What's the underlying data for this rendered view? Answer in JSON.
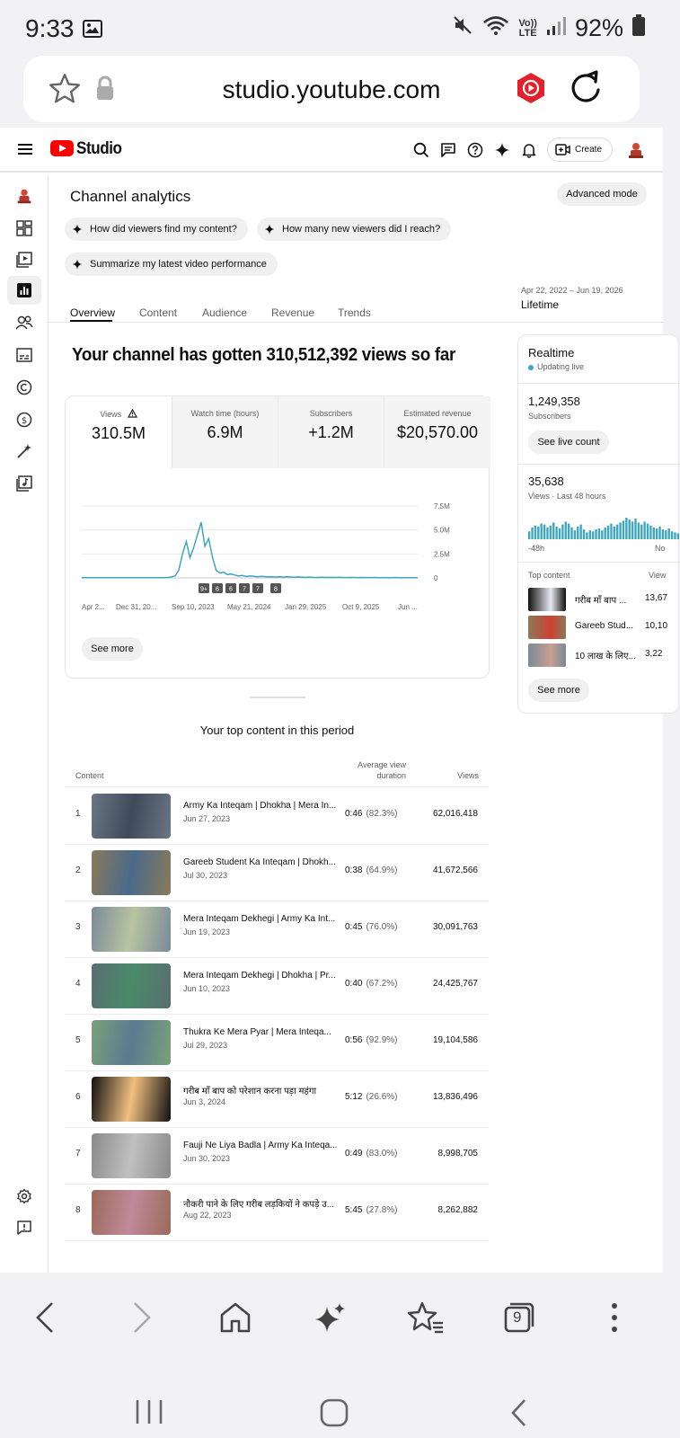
{
  "status_bar": {
    "time": "9:33",
    "battery": "92%"
  },
  "browser": {
    "url": "studio.youtube.com",
    "tab_count": "9"
  },
  "header": {
    "logo_text": "Studio",
    "create_label": "Create"
  },
  "analytics": {
    "title": "Channel analytics",
    "advanced_mode": "Advanced mode",
    "chips": [
      "How did viewers find my content?",
      "How many new viewers did I reach?",
      "Summarize my latest video performance"
    ],
    "tabs": [
      "Overview",
      "Content",
      "Audience",
      "Revenue",
      "Trends"
    ],
    "date_range": "Apr 22, 2022 – Jun 19, 2026",
    "date_label": "Lifetime",
    "headline": "Your channel has gotten 310,512,392 views so far",
    "metrics": [
      {
        "label": "Views",
        "value": "310.5M"
      },
      {
        "label": "Watch time (hours)",
        "value": "6.9M"
      },
      {
        "label": "Subscribers",
        "value": "+1.2M"
      },
      {
        "label": "Estimated revenue",
        "value": "$20,570.00"
      }
    ],
    "see_more": "See more"
  },
  "chart_data": {
    "type": "line",
    "y_ticks": [
      "7.5M",
      "5.0M",
      "2.5M",
      "0"
    ],
    "x_ticks": [
      "Apr 2...",
      "Dec 31, 20...",
      "Sep 10, 2023",
      "May 21, 2024",
      "Jan 29, 2025",
      "Oct 9, 2025",
      "Jun ..."
    ],
    "ylim": [
      0,
      7500000
    ],
    "markers": [
      "9+",
      "6",
      "6",
      "7",
      "7",
      "8"
    ],
    "series": [
      {
        "values": [
          20000,
          20000,
          20000,
          20000,
          20000,
          20000,
          20000,
          20000,
          20000,
          20000,
          20000,
          20000,
          20000,
          20000,
          20000,
          20000,
          20000,
          20000,
          20000,
          20000,
          20000,
          20000,
          30000,
          40000,
          100000,
          200000,
          800000,
          2500000,
          3800000,
          2100000,
          3200000,
          4500000,
          5800000,
          3300000,
          4100000,
          2200000,
          800000,
          500000,
          600000,
          350000,
          400000,
          300000,
          200000,
          250000,
          150000,
          200000,
          180000,
          120000,
          160000,
          140000,
          100000,
          120000,
          90000,
          110000,
          80000,
          120000,
          90000,
          70000,
          100000,
          80000,
          60000,
          80000,
          60000,
          50000,
          70000,
          60000,
          50000,
          60000,
          45000,
          55000,
          50000,
          40000,
          50000,
          45000,
          40000,
          45000,
          40000,
          35000,
          40000,
          35000,
          30000,
          35000,
          30000,
          30000,
          35000,
          30000,
          25000,
          30000,
          25000,
          25000,
          30000
        ]
      }
    ]
  },
  "top_content": {
    "title": "Your top content in this period",
    "col_content": "Content",
    "col_avg_1": "Average view",
    "col_avg_2": "duration",
    "col_views": "Views",
    "rows": [
      {
        "rank": "1",
        "title": "Army Ka Inteqam | Dhokha | Mera In...",
        "date": "Jun 27, 2023",
        "duration": "0:46",
        "pct": "(82.3%)",
        "views": "62,016,418"
      },
      {
        "rank": "2",
        "title": "Gareeb Student Ka Inteqam | Dhokh...",
        "date": "Jul 30, 2023",
        "duration": "0:38",
        "pct": "(64.9%)",
        "views": "41,672,566"
      },
      {
        "rank": "3",
        "title": "Mera Inteqam Dekhegi | Army Ka Int...",
        "date": "Jun 19, 2023",
        "duration": "0:45",
        "pct": "(76.0%)",
        "views": "30,091,763"
      },
      {
        "rank": "4",
        "title": "Mera Inteqam Dekhegi | Dhokha | Pr...",
        "date": "Jun 10, 2023",
        "duration": "0:40",
        "pct": "(67.2%)",
        "views": "24,425,767"
      },
      {
        "rank": "5",
        "title": "Thukra Ke Mera Pyar | Mera Inteqa...",
        "date": "Jul 29, 2023",
        "duration": "0:56",
        "pct": "(92.9%)",
        "views": "19,104,586"
      },
      {
        "rank": "6",
        "title": "गरीब माँ बाप को परेशान करना पड़ा महंगा",
        "date": "Jun 3, 2024",
        "duration": "5:12",
        "pct": "(26.6%)",
        "views": "13,836,496"
      },
      {
        "rank": "7",
        "title": "Fauji Ne Liya Badla | Army Ka Inteqa...",
        "date": "Jun 30, 2023",
        "duration": "0:49",
        "pct": "(83.0%)",
        "views": "8,998,705"
      },
      {
        "rank": "8",
        "title": "नौकरी पाने के लिए गरीब लड़कियों ने कपड़े उ...",
        "date": "Aug 22, 2023",
        "duration": "5:45",
        "pct": "(27.8%)",
        "views": "8,262,882"
      }
    ]
  },
  "realtime": {
    "title": "Realtime",
    "live_label": "Updating live",
    "subs_value": "1,249,358",
    "subs_label": "Subscribers",
    "see_live": "See live count",
    "views_value": "35,638",
    "views_label": "Views · Last 48 hours",
    "axis_left": "-48h",
    "axis_right": "No",
    "top_content_label": "Top content",
    "views_col": "View",
    "items": [
      {
        "title": "गरीब माँ बाप ...",
        "views": "13,67"
      },
      {
        "title": "Gareeb Stud...",
        "views": "10,10"
      },
      {
        "title": "10 लाख के लिए...",
        "views": "3,22"
      }
    ],
    "see_more": "See more",
    "bars": [
      8,
      12,
      14,
      13,
      16,
      15,
      12,
      14,
      17,
      13,
      11,
      15,
      18,
      16,
      12,
      9,
      13,
      15,
      10,
      7,
      9,
      8,
      10,
      11,
      9,
      12,
      14,
      16,
      13,
      15,
      17,
      19,
      22,
      20,
      18,
      21,
      17,
      15,
      18,
      16,
      14,
      12,
      11,
      13,
      10,
      9,
      11,
      8,
      7,
      6
    ]
  }
}
